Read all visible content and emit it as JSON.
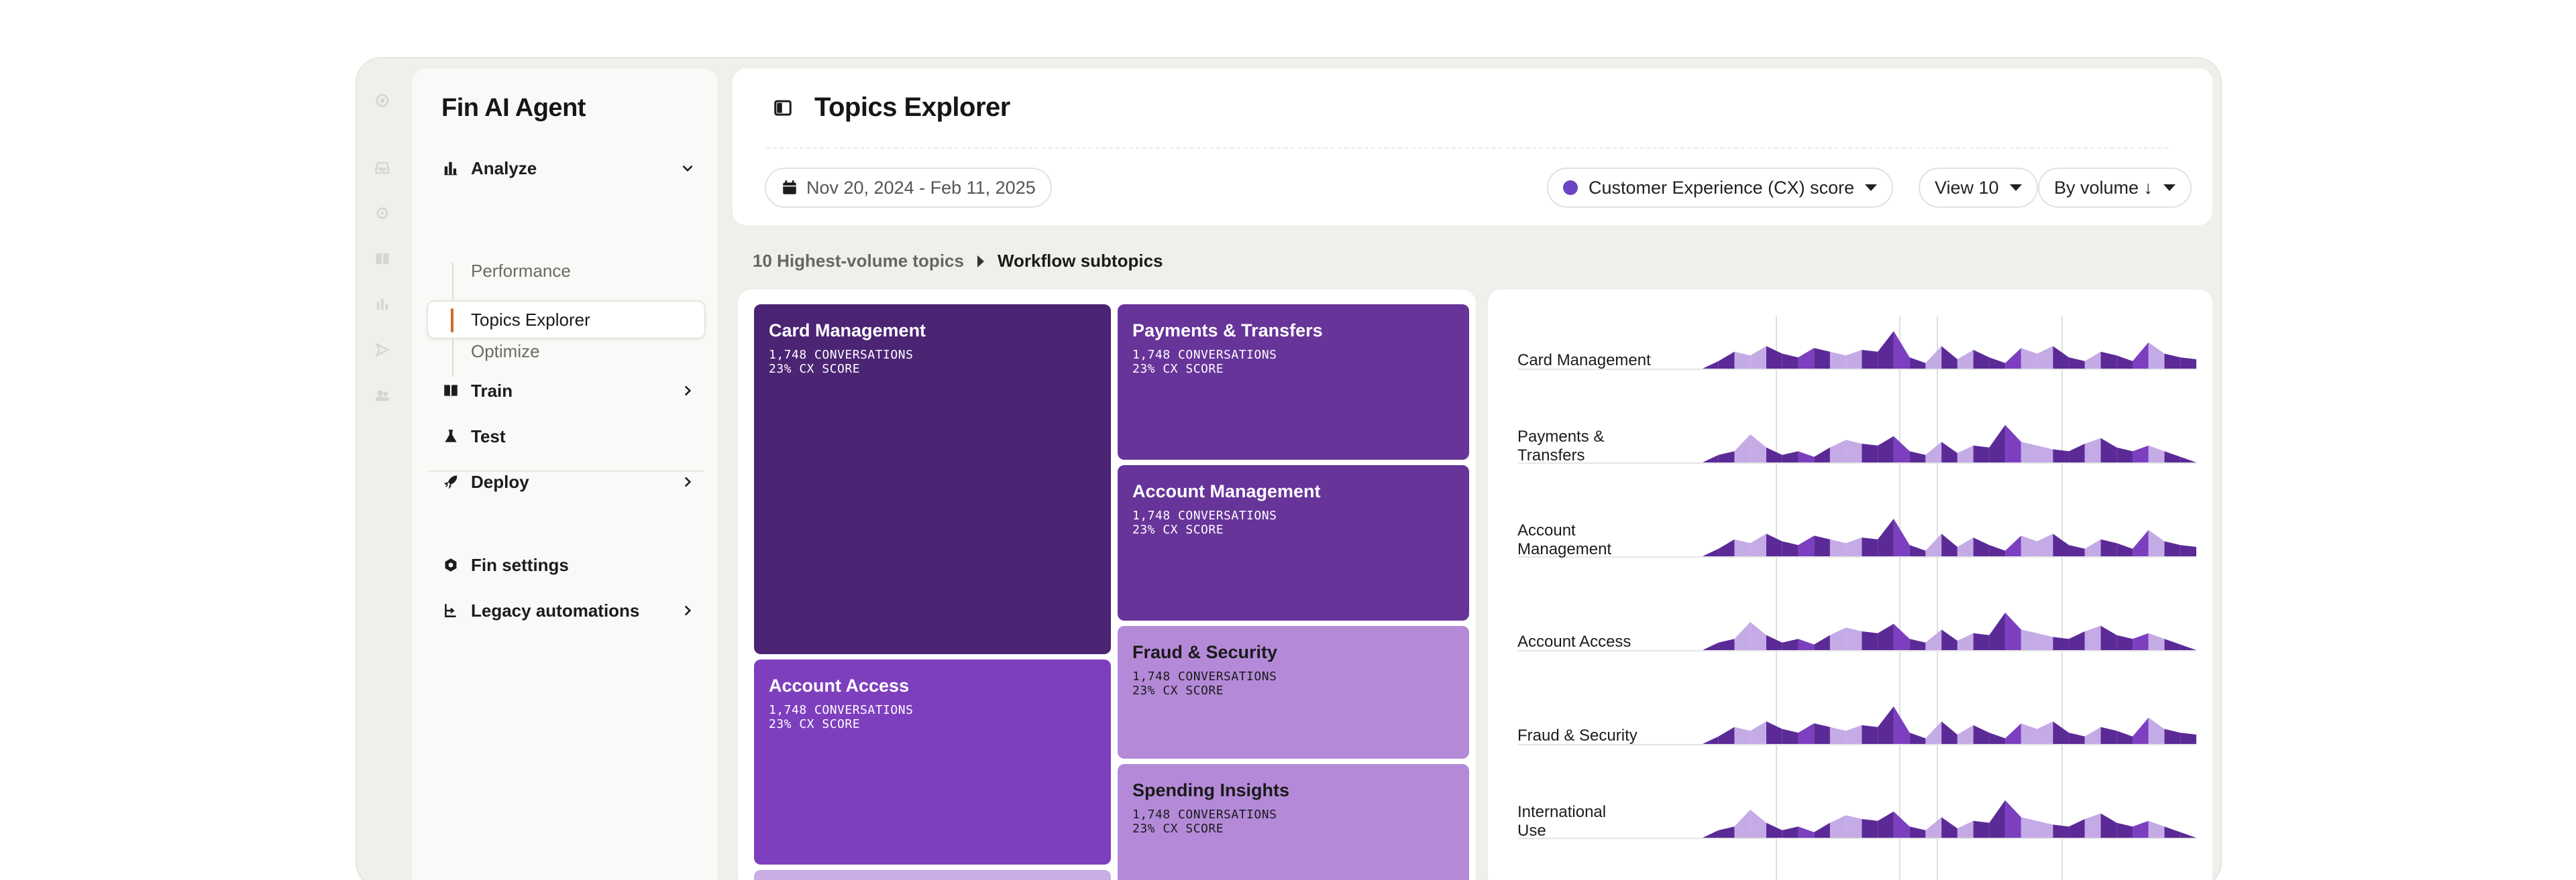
{
  "sidebar": {
    "title": "Fin AI Agent",
    "nav": [
      {
        "label": "Analyze",
        "icon": "bar-chart-icon",
        "chevron": "down"
      },
      {
        "label": "Train",
        "icon": "book-icon",
        "chevron": "right"
      },
      {
        "label": "Test",
        "icon": "flask-icon",
        "chevron": ""
      },
      {
        "label": "Deploy",
        "icon": "rocket-icon",
        "chevron": "right"
      },
      {
        "label": "Fin settings",
        "icon": "gear-icon",
        "chevron": ""
      },
      {
        "label": "Legacy automations",
        "icon": "branch-icon",
        "chevron": "right"
      }
    ],
    "analyze_sub": [
      {
        "label": "Performance",
        "active": false
      },
      {
        "label": "Topics Explorer",
        "active": true
      },
      {
        "label": "Optimize",
        "active": false
      }
    ]
  },
  "header": {
    "title": "Topics Explorer",
    "date_range": "Nov 20, 2024 - Feb 11, 2025",
    "metric": "Customer Experience (CX) score",
    "metric_color": "#6b45c2",
    "view": "View 10",
    "sort": "By volume ↓"
  },
  "breadcrumb": {
    "parent": "10 Highest-volume topics",
    "current": "Workflow subtopics"
  },
  "treemap": {
    "tiles": [
      {
        "name": "Card Management",
        "conversations": "1,748 CONVERSATIONS",
        "cx": "23% CX SCORE",
        "color": "#4b2473",
        "text": "#ffffff"
      },
      {
        "name": "Payments & Transfers",
        "conversations": "1,748 CONVERSATIONS",
        "cx": "23% CX SCORE",
        "color": "#673499",
        "text": "#ffffff"
      },
      {
        "name": "Account Management",
        "conversations": "1,748 CONVERSATIONS",
        "cx": "23% CX SCORE",
        "color": "#673499",
        "text": "#ffffff"
      },
      {
        "name": "Account Access",
        "conversations": "1,748 CONVERSATIONS",
        "cx": "23% CX SCORE",
        "color": "#7e3fbf",
        "text": "#ffffff"
      },
      {
        "name": "Fraud & Security",
        "conversations": "1,748 CONVERSATIONS",
        "cx": "23% CX SCORE",
        "color": "#b48ad8",
        "text": "#1a1a1a"
      },
      {
        "name": "Spending Insights",
        "conversations": "1,748 CONVERSATIONS",
        "cx": "23% CX SCORE",
        "color": "#b48ad8",
        "text": "#1a1a1a"
      },
      {
        "name": "",
        "conversations": "",
        "cx": "",
        "color": "#c8aee5",
        "text": "#1a1a1a"
      }
    ]
  },
  "sparklines": {
    "colors": {
      "dark": "#5c2a96",
      "mid": "#7c3fc0",
      "light": "#c4abe6"
    },
    "rows": [
      {
        "label": "Card Management",
        "pattern": "A"
      },
      {
        "label": "Payments & Transfers",
        "pattern": "B"
      },
      {
        "label": "Account Management",
        "pattern": "A"
      },
      {
        "label": "Account Access",
        "pattern": "B"
      },
      {
        "label": "Fraud & Security",
        "pattern": "A"
      },
      {
        "label": "International Use",
        "pattern": "B"
      }
    ],
    "patterns": {
      "A": [
        0,
        0.2,
        0.45,
        0.35,
        0.6,
        0.4,
        0.3,
        0.55,
        0.45,
        0.35,
        0.5,
        0.45,
        1.0,
        0.3,
        0.15,
        0.6,
        0.25,
        0.5,
        0.3,
        0.15,
        0.55,
        0.4,
        0.6,
        0.3,
        0.2,
        0.45,
        0.35,
        0.2,
        0.7,
        0.4,
        0.3,
        0.25
      ],
      "B": [
        0,
        0.2,
        0.3,
        0.75,
        0.4,
        0.2,
        0.3,
        0.15,
        0.4,
        0.6,
        0.5,
        0.45,
        0.7,
        0.3,
        0.2,
        0.55,
        0.25,
        0.45,
        0.4,
        1.0,
        0.55,
        0.45,
        0.35,
        0.3,
        0.5,
        0.65,
        0.4,
        0.3,
        0.45,
        0.3,
        0.15,
        0.0
      ]
    }
  }
}
